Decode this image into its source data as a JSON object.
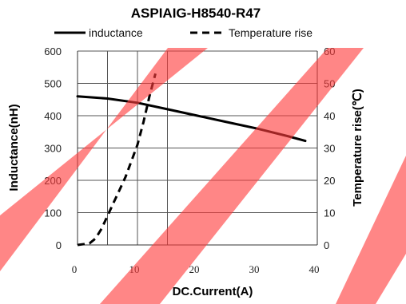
{
  "chart_data": {
    "type": "line",
    "title": "ASPIAIG-H8540-R47",
    "xlabel": "DC.Current(A)",
    "ylabel": "Inductance(nH)",
    "y2label": "Temperature rise(℃)",
    "xlim": [
      0,
      40
    ],
    "ylim": [
      0,
      600
    ],
    "y2lim": [
      0,
      60
    ],
    "x_ticks": [
      "0",
      "10",
      "20",
      "30",
      "40"
    ],
    "y_ticks": [
      "0",
      "100",
      "200",
      "300",
      "400",
      "500",
      "600"
    ],
    "y2_ticks": [
      "0",
      "10",
      "20",
      "30",
      "40",
      "50",
      "60"
    ],
    "grid": true,
    "vertical_gridlines_x": [
      5,
      10,
      15
    ],
    "legend_position": "top",
    "series": [
      {
        "name": "inductance",
        "axis": "left",
        "style": "solid",
        "color": "#000000",
        "x": [
          0,
          5,
          10,
          15,
          20,
          25,
          30,
          35,
          38
        ],
        "y": [
          460,
          453,
          440,
          420,
          400,
          380,
          360,
          337,
          322
        ]
      },
      {
        "name": "Temperature rise",
        "axis": "right",
        "style": "dashed",
        "color": "#000000",
        "x": [
          0,
          2,
          3,
          4,
          5,
          6,
          7,
          8,
          9,
          10,
          11,
          12,
          13
        ],
        "y": [
          0,
          0.5,
          2,
          5,
          9,
          13,
          17,
          21,
          26,
          31,
          38,
          46,
          53
        ]
      }
    ]
  },
  "watermark": {
    "color": "#ff3b3b"
  }
}
